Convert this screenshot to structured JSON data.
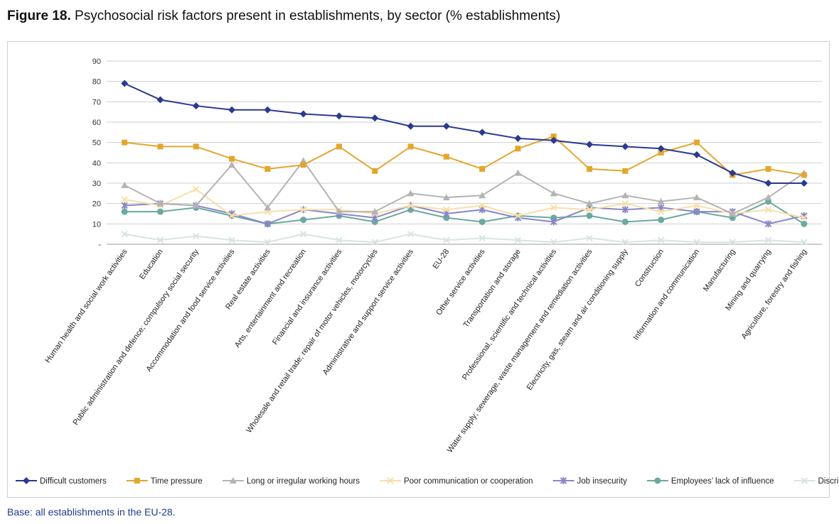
{
  "figure": {
    "label": "Figure 18.",
    "title": "Psychosocial risk factors present in establishments, by sector (% establishments)",
    "base_note": "Base: all establishments in the EU-28."
  },
  "chart_data": {
    "type": "line",
    "ylim": [
      0,
      90
    ],
    "yticks": [
      0,
      10,
      20,
      30,
      40,
      50,
      60,
      70,
      80,
      90
    ],
    "ytick_labels": [
      "-",
      "10",
      "20",
      "30",
      "40",
      "50",
      "60",
      "70",
      "80",
      "90"
    ],
    "grid": true,
    "legend": "bottom",
    "categories": [
      "Human health and social work activities",
      "Education",
      "Public administration and defence; compulsory social security",
      "Accommodation and food service activities",
      "Real estate activities",
      "Arts, entertainment and recreation",
      "Financial and insurance activities",
      "Wholesale and retail trade; repair of motor vehicles, motorcycles",
      "Administrative and support service activities",
      "EU-28",
      "Other service activities",
      "Transportation and storage",
      "Professional, scientific and technical activities",
      "Water supply; sewerage, waste management and remediation activities",
      "Electricity, gas, steam and air conditioning supply",
      "Construction",
      "Information and communication",
      "Manufacturing",
      "Mining and quarrying",
      "Agriculture, forestry and fishing"
    ],
    "series": [
      {
        "name": "Difficult customers",
        "color": "#2b3990",
        "marker": "diamond",
        "values": [
          79,
          71,
          68,
          66,
          66,
          64,
          63,
          62,
          58,
          58,
          55,
          52,
          51,
          49,
          48,
          47,
          44,
          35,
          30,
          30
        ]
      },
      {
        "name": "Time pressure",
        "color": "#e3a62d",
        "marker": "square",
        "values": [
          50,
          48,
          48,
          42,
          37,
          39,
          48,
          36,
          48,
          43,
          37,
          47,
          53,
          37,
          36,
          45,
          50,
          34,
          37,
          34
        ]
      },
      {
        "name": "Long or irregular working hours",
        "color": "#b3b3b3",
        "marker": "triangle",
        "values": [
          29,
          20,
          19,
          39,
          18,
          41,
          16,
          16,
          25,
          23,
          24,
          35,
          25,
          20,
          24,
          21,
          23,
          15,
          23,
          35
        ]
      },
      {
        "name": "Poor communication or cooperation",
        "color": "#f7dfa8",
        "marker": "cross",
        "values": [
          22,
          19,
          27,
          14,
          16,
          17,
          17,
          15,
          19,
          17,
          19,
          14,
          18,
          17,
          20,
          16,
          19,
          15,
          17,
          13
        ]
      },
      {
        "name": "Job insecurity",
        "color": "#8a86c8",
        "marker": "star",
        "values": [
          19,
          20,
          19,
          15,
          10,
          17,
          15,
          13,
          19,
          15,
          17,
          13,
          11,
          18,
          17,
          18,
          16,
          16,
          10,
          14
        ]
      },
      {
        "name": "Employees’ lack of influence",
        "color": "#6aa9a0",
        "marker": "circle",
        "values": [
          16,
          16,
          18,
          14,
          10,
          12,
          14,
          11,
          17,
          13,
          11,
          14,
          13,
          14,
          11,
          12,
          16,
          13,
          21,
          10
        ]
      },
      {
        "name": "Discrimination",
        "color": "#d6e4e4",
        "marker": "cross",
        "values": [
          5,
          2,
          4,
          2,
          1,
          5,
          2,
          1,
          5,
          2,
          3,
          2,
          1,
          3,
          1,
          2,
          1,
          1,
          2,
          1
        ]
      }
    ]
  }
}
